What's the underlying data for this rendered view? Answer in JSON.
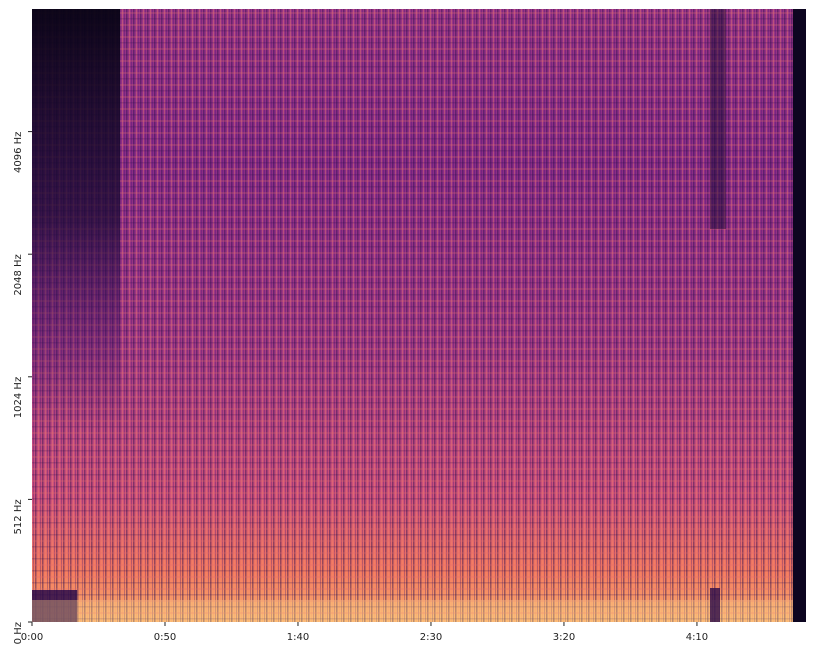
{
  "chart_data": {
    "type": "spectrogram",
    "xlim": [
      0,
      291
    ],
    "xticks": [
      {
        "value": 0,
        "label": "0:00"
      },
      {
        "value": 50,
        "label": "0:50"
      },
      {
        "value": 100,
        "label": "1:40"
      },
      {
        "value": 150,
        "label": "2:30"
      },
      {
        "value": 200,
        "label": "3:20"
      },
      {
        "value": 250,
        "label": "4:10"
      }
    ],
    "yscale": "symlog",
    "linthresh": 512,
    "ylim": [
      0,
      8192
    ],
    "yticks": [
      {
        "value": 0,
        "label": "0 Hz"
      },
      {
        "value": 512,
        "label": "512 Hz"
      },
      {
        "value": 1024,
        "label": "1024 Hz"
      },
      {
        "value": 2048,
        "label": "2048 Hz"
      },
      {
        "value": 4096,
        "label": "4096 Hz"
      }
    ]
  }
}
